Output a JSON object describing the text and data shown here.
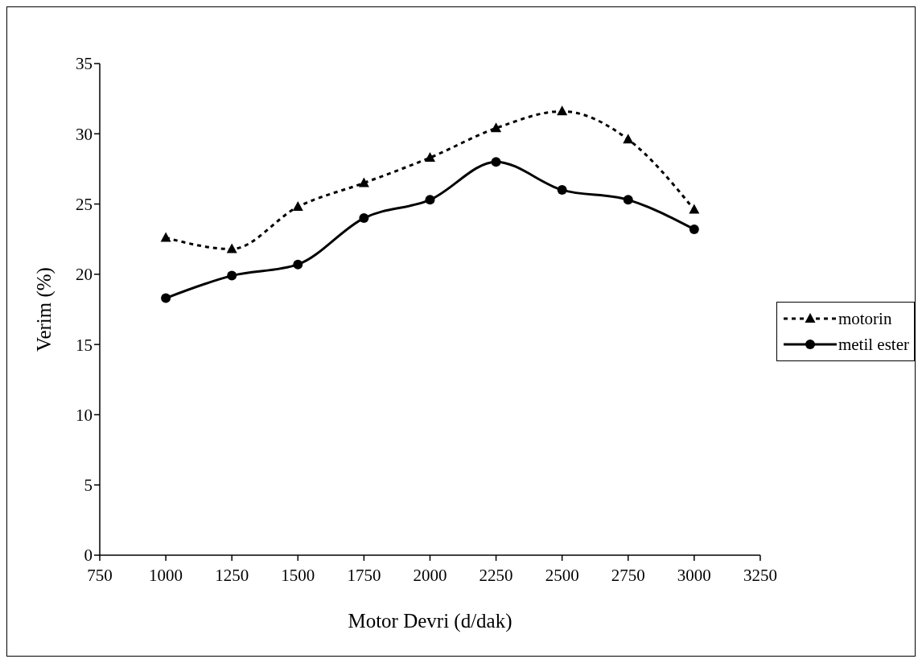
{
  "chart_data": {
    "type": "line",
    "xlabel": "Motor Devri (d/dak)",
    "ylabel": "Verim (%)",
    "x": [
      1000,
      1250,
      1500,
      1750,
      2000,
      2250,
      2500,
      2750,
      3000
    ],
    "series": [
      {
        "name": "motorin",
        "color": "#000000",
        "marker": "triangle",
        "line_style": "dotted",
        "values": [
          22.6,
          21.8,
          24.8,
          26.5,
          28.3,
          30.4,
          31.6,
          29.6,
          24.6
        ]
      },
      {
        "name": "metil ester",
        "color": "#000000",
        "marker": "circle",
        "line_style": "solid",
        "values": [
          18.3,
          19.9,
          20.7,
          24.0,
          25.3,
          28.0,
          26.0,
          25.3,
          23.2
        ]
      }
    ],
    "xlim": [
      750,
      3250
    ],
    "xticks": [
      750,
      1000,
      1250,
      1500,
      1750,
      2000,
      2250,
      2500,
      2750,
      3000,
      3250
    ],
    "ylim": [
      0,
      35
    ],
    "yticks": [
      0,
      5,
      10,
      15,
      20,
      25,
      30,
      35
    ],
    "grid": false,
    "legend": "right"
  }
}
